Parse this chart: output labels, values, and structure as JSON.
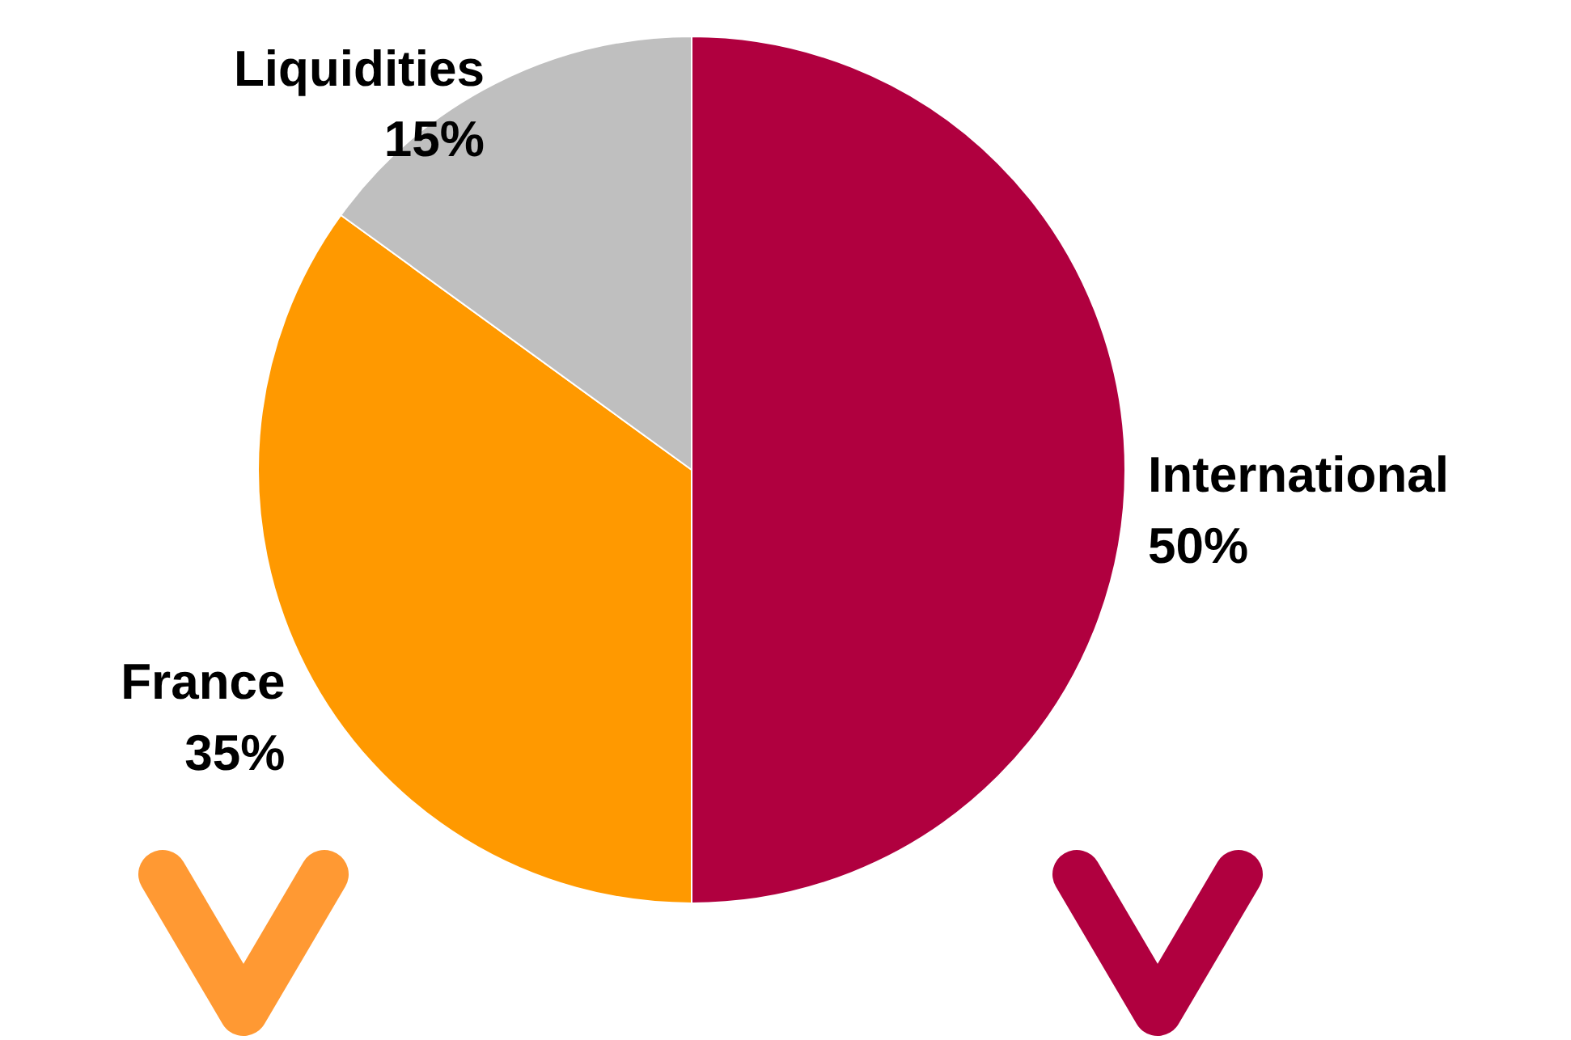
{
  "chart_data": {
    "type": "pie",
    "categories": [
      "International",
      "France",
      "Liquidities"
    ],
    "values": [
      50,
      35,
      15
    ],
    "colors": [
      "#b0003f",
      "#ff9900",
      "#bfbfbf"
    ],
    "value_labels": [
      "50%",
      "35%",
      "15%"
    ]
  }
}
